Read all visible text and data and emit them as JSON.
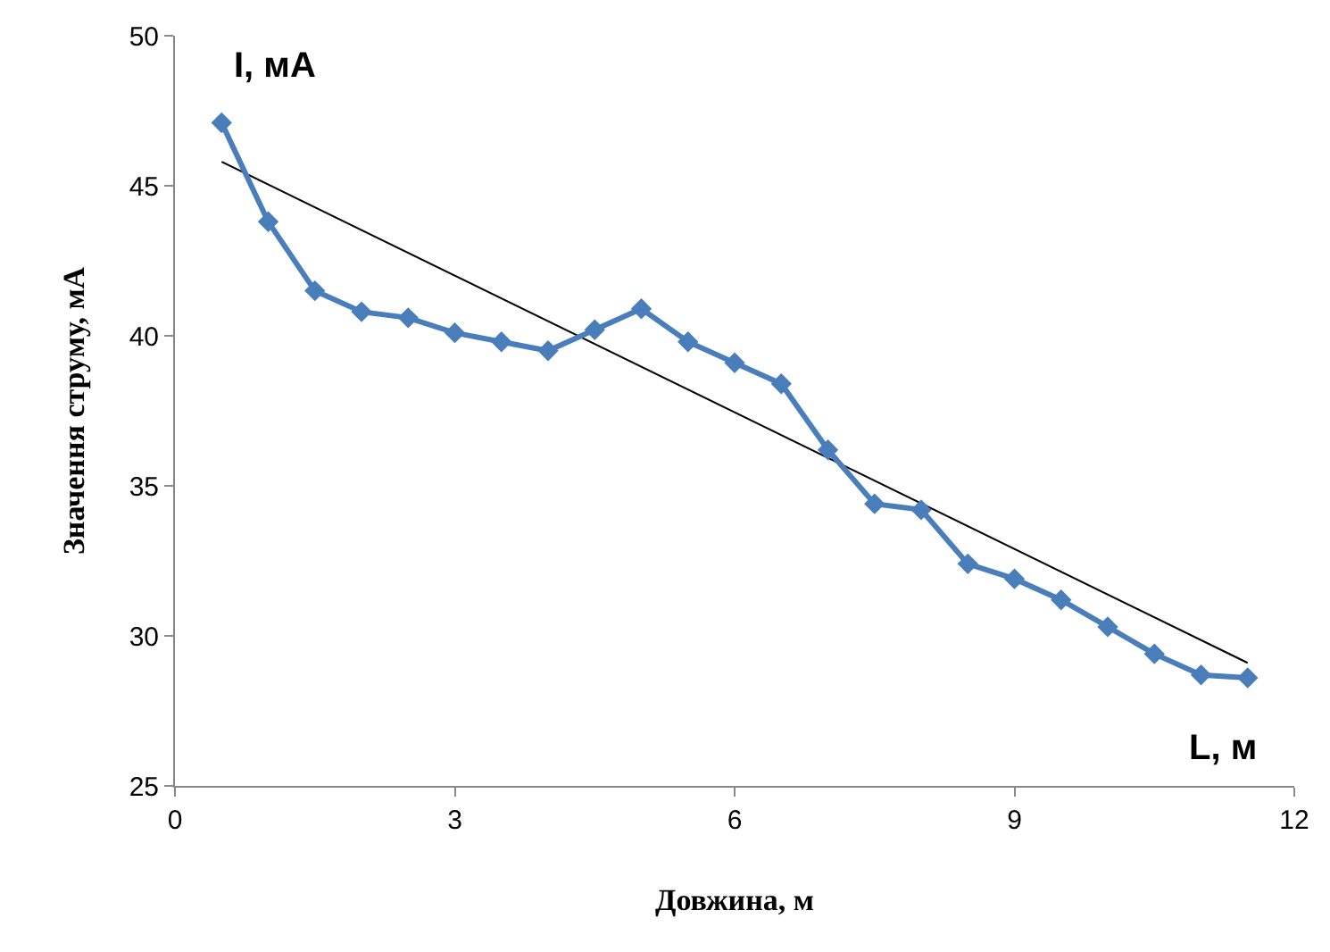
{
  "chart_data": {
    "type": "line",
    "xlabel": "Довжина, м",
    "ylabel": "Значення струму, мА",
    "x": [
      0.5,
      1,
      1.5,
      2,
      2.5,
      3,
      3.5,
      4,
      4.5,
      5,
      5.5,
      6,
      6.5,
      7,
      7.5,
      8,
      8.5,
      9,
      9.5,
      10,
      10.5,
      11,
      11.5
    ],
    "series": [
      {
        "color": "#4a7ebb",
        "values": [
          47.1,
          43.8,
          41.5,
          40.8,
          40.6,
          40.1,
          39.8,
          39.5,
          40.2,
          40.9,
          39.8,
          39.1,
          38.4,
          36.2,
          34.4,
          34.2,
          32.4,
          31.9,
          31.2,
          30.3,
          29.4,
          28.7,
          28.6
        ],
        "marker": "diamond",
        "line_style": "solid"
      },
      {
        "type": "line",
        "color": "#000000",
        "x": [
          0.5,
          11.5
        ],
        "values": [
          45.8,
          29.1
        ],
        "marker": "none",
        "line_style": "solid"
      }
    ],
    "annotations": [
      "I, мА",
      "L, м"
    ],
    "xlim": [
      0,
      12
    ],
    "xticks": [
      0,
      3,
      6,
      9,
      12
    ],
    "ylim": [
      25,
      50
    ],
    "yticks": [
      25,
      30,
      35,
      40,
      45,
      50
    ]
  }
}
